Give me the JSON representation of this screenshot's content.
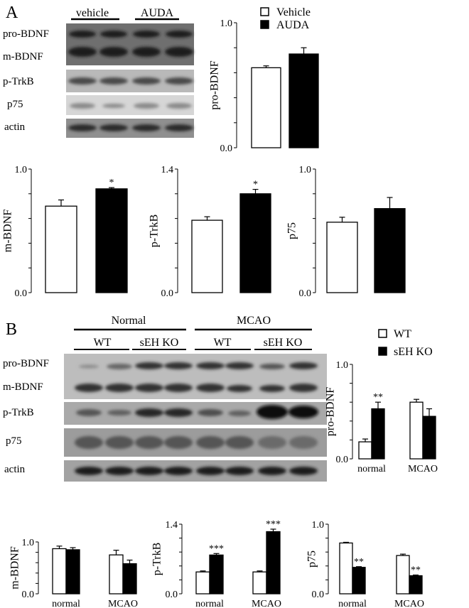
{
  "panels": [
    {
      "letter": "A",
      "groups": [
        {
          "label": "vehicle"
        },
        {
          "label": "AUDA"
        }
      ],
      "subgroups": [],
      "blot_rows": [
        {
          "labels": [
            "pro-BDNF",
            "m-BDNF"
          ],
          "type": "double",
          "tone": "dark"
        },
        {
          "labels": [
            "p-TrkB"
          ],
          "type": "single",
          "tone": "medium"
        },
        {
          "labels": [
            "p75"
          ],
          "type": "single",
          "tone": "light"
        },
        {
          "labels": [
            "actin"
          ],
          "type": "single",
          "tone": "dark"
        }
      ],
      "legend": [
        {
          "label": "Vehicle",
          "fill": "#ffffff"
        },
        {
          "label": "AUDA",
          "fill": "#000000"
        }
      ]
    },
    {
      "letter": "B",
      "groups": [
        {
          "label": "Normal"
        },
        {
          "label": "MCAO"
        }
      ],
      "subgroups": [
        {
          "label": "WT"
        },
        {
          "label": "sEH KO"
        },
        {
          "label": "WT"
        },
        {
          "label": "sEH KO"
        }
      ],
      "blot_rows": [
        {
          "labels": [
            "pro-BDNF",
            "m-BDNF"
          ],
          "type": "double",
          "tone": "dark"
        },
        {
          "labels": [
            "p-TrkB"
          ],
          "type": "single",
          "tone": "dark"
        },
        {
          "labels": [
            "p75"
          ],
          "type": "single",
          "tone": "medium"
        },
        {
          "labels": [
            "actin"
          ],
          "type": "single",
          "tone": "dark"
        }
      ],
      "legend": [
        {
          "label": "WT",
          "fill": "#ffffff"
        },
        {
          "label": "sEH KO",
          "fill": "#000000"
        }
      ]
    }
  ],
  "chart_data": [
    {
      "panel": "A",
      "type": "bar",
      "ylabel": "pro-BDNF",
      "ylim": [
        0,
        1.0
      ],
      "yticks": [
        "0.0",
        "1.0"
      ],
      "categories": [
        ""
      ],
      "series": [
        {
          "name": "Vehicle",
          "fill": "#ffffff",
          "values": [
            0.64
          ],
          "errors": [
            0.015
          ],
          "sig": [
            ""
          ]
        },
        {
          "name": "AUDA",
          "fill": "#000000",
          "values": [
            0.75
          ],
          "errors": [
            0.05
          ],
          "sig": [
            ""
          ]
        }
      ]
    },
    {
      "panel": "A",
      "type": "bar",
      "ylabel": "m-BDNF",
      "ylim": [
        0,
        1.0
      ],
      "yticks": [
        "0.0",
        "1.0"
      ],
      "categories": [
        ""
      ],
      "series": [
        {
          "name": "Vehicle",
          "fill": "#ffffff",
          "values": [
            0.7
          ],
          "errors": [
            0.05
          ],
          "sig": [
            ""
          ]
        },
        {
          "name": "AUDA",
          "fill": "#000000",
          "values": [
            0.84
          ],
          "errors": [
            0.01
          ],
          "sig": [
            "*"
          ]
        }
      ]
    },
    {
      "panel": "A",
      "type": "bar",
      "ylabel": "p-TrkB",
      "ylim": [
        0,
        1.4
      ],
      "yticks": [
        "0.0",
        "1.4"
      ],
      "categories": [
        ""
      ],
      "series": [
        {
          "name": "Vehicle",
          "fill": "#ffffff",
          "values": [
            0.82
          ],
          "errors": [
            0.04
          ],
          "sig": [
            ""
          ]
        },
        {
          "name": "AUDA",
          "fill": "#000000",
          "values": [
            1.12
          ],
          "errors": [
            0.05
          ],
          "sig": [
            "*"
          ]
        }
      ]
    },
    {
      "panel": "A",
      "type": "bar",
      "ylabel": "p75",
      "ylim": [
        0,
        1.0
      ],
      "yticks": [
        "0.0",
        "1.0"
      ],
      "categories": [
        ""
      ],
      "series": [
        {
          "name": "Vehicle",
          "fill": "#ffffff",
          "values": [
            0.57
          ],
          "errors": [
            0.04
          ],
          "sig": [
            ""
          ]
        },
        {
          "name": "AUDA",
          "fill": "#000000",
          "values": [
            0.68
          ],
          "errors": [
            0.09
          ],
          "sig": [
            ""
          ]
        }
      ]
    },
    {
      "panel": "B",
      "type": "bar",
      "ylabel": "pro-BDNF",
      "ylim": [
        0,
        1.0
      ],
      "yticks": [
        "0.0",
        "1.0"
      ],
      "categories": [
        "normal",
        "MCAO"
      ],
      "series": [
        {
          "name": "WT",
          "fill": "#ffffff",
          "values": [
            0.18,
            0.6
          ],
          "errors": [
            0.03,
            0.03
          ],
          "sig": [
            "",
            ""
          ]
        },
        {
          "name": "sEH KO",
          "fill": "#000000",
          "values": [
            0.53,
            0.45
          ],
          "errors": [
            0.07,
            0.08
          ],
          "sig": [
            "**",
            ""
          ]
        }
      ]
    },
    {
      "panel": "B",
      "type": "bar",
      "ylabel": "m-BDNF",
      "ylim": [
        0,
        1.0
      ],
      "yticks": [
        "0.0",
        "1.0"
      ],
      "categories": [
        "normal",
        "MCAO"
      ],
      "series": [
        {
          "name": "WT",
          "fill": "#ffffff",
          "values": [
            0.87,
            0.75
          ],
          "errors": [
            0.05,
            0.09
          ],
          "sig": [
            "",
            ""
          ]
        },
        {
          "name": "sEH KO",
          "fill": "#000000",
          "values": [
            0.85,
            0.58
          ],
          "errors": [
            0.04,
            0.07
          ],
          "sig": [
            "",
            ""
          ]
        }
      ]
    },
    {
      "panel": "B",
      "type": "bar",
      "ylabel": "p-TrkB",
      "ylim": [
        0,
        1.4
      ],
      "yticks": [
        "0.0",
        "1.4"
      ],
      "categories": [
        "normal",
        "MCAO"
      ],
      "series": [
        {
          "name": "WT",
          "fill": "#ffffff",
          "values": [
            0.44,
            0.44
          ],
          "errors": [
            0.02,
            0.02
          ],
          "sig": [
            "",
            ""
          ]
        },
        {
          "name": "sEH KO",
          "fill": "#000000",
          "values": [
            0.78,
            1.25
          ],
          "errors": [
            0.03,
            0.05
          ],
          "sig": [
            "***",
            "***"
          ]
        }
      ]
    },
    {
      "panel": "B",
      "type": "bar",
      "ylabel": "p75",
      "ylim": [
        0,
        1.0
      ],
      "yticks": [
        "0.0",
        "1.0"
      ],
      "categories": [
        "normal",
        "MCAO"
      ],
      "series": [
        {
          "name": "WT",
          "fill": "#ffffff",
          "values": [
            0.73,
            0.55
          ],
          "errors": [
            0.01,
            0.02
          ],
          "sig": [
            "",
            ""
          ]
        },
        {
          "name": "sEH KO",
          "fill": "#000000",
          "values": [
            0.38,
            0.26
          ],
          "errors": [
            0.01,
            0.01
          ],
          "sig": [
            "**",
            "**"
          ]
        }
      ]
    }
  ]
}
